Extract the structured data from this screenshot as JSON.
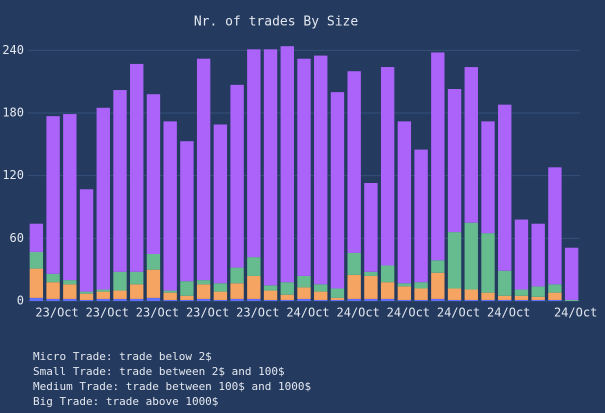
{
  "chart_data": {
    "type": "stacked_bar",
    "title": "Nr. of trades By Size",
    "categories": [
      null,
      "23/Oct",
      null,
      null,
      "23/Oct",
      null,
      null,
      "23/Oct",
      null,
      null,
      "23/Oct",
      null,
      null,
      "23/Oct",
      null,
      null,
      "24/Oct",
      null,
      null,
      "24/Oct",
      null,
      null,
      "24/Oct",
      null,
      null,
      "24/Oct",
      null,
      null,
      "24/Oct",
      null,
      null,
      null,
      "24/Oct"
    ],
    "series": [
      {
        "color": "#636efa",
        "values": [
          3,
          2,
          2,
          1,
          2,
          2,
          2,
          3,
          1,
          1,
          2,
          1,
          2,
          2,
          1,
          1,
          2,
          1,
          1,
          2,
          2,
          2,
          1,
          1,
          2,
          1,
          1,
          1,
          1,
          1,
          1,
          1,
          0
        ]
      },
      {
        "color": "#f5a461",
        "values": [
          28,
          16,
          14,
          6,
          7,
          8,
          14,
          27,
          7,
          4,
          14,
          8,
          15,
          22,
          9,
          5,
          11,
          8,
          2,
          23,
          22,
          16,
          13,
          11,
          25,
          11,
          10,
          7,
          4,
          4,
          3,
          7,
          0
        ]
      },
      {
        "color": "#66bb8f",
        "values": [
          16,
          8,
          4,
          2,
          2,
          18,
          12,
          15,
          2,
          14,
          4,
          8,
          15,
          18,
          5,
          12,
          11,
          7,
          9,
          21,
          4,
          16,
          3,
          6,
          12,
          54,
          64,
          57,
          24,
          6,
          10,
          8,
          1
        ]
      },
      {
        "color": "#ab63fa",
        "values": [
          27,
          151,
          159,
          98,
          174,
          174,
          199,
          153,
          162,
          134,
          212,
          152,
          175,
          199,
          226,
          226,
          208,
          219,
          188,
          174,
          85,
          190,
          155,
          127,
          199,
          137,
          149,
          107,
          159,
          67,
          60,
          112,
          50
        ]
      }
    ],
    "ylim": [
      0,
      248
    ],
    "yticks": [
      0,
      60,
      120,
      180,
      240
    ],
    "grid": true,
    "notes": [
      "Micro Trade: trade below 2$",
      "Small Trade: trade between 2$ and 100$",
      "Medium Trade: trade between 100$ and 1000$",
      "Big Trade: trade above 1000$"
    ]
  }
}
